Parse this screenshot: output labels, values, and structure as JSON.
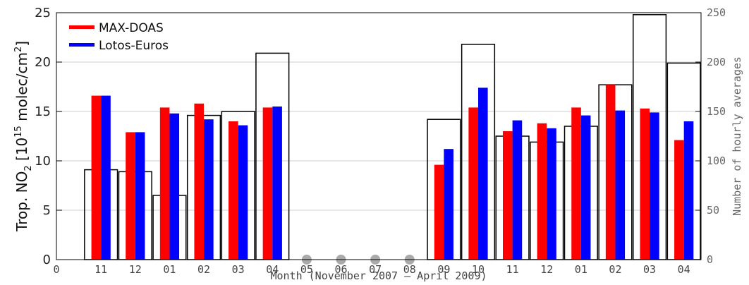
{
  "chart_data": {
    "type": "bar",
    "xlabel": "Month (November 2007 – April 2009)",
    "ylabel_left_main": "Trop. NO",
    "ylabel_left_sub": "2",
    "ylabel_left_rest_a": " [10",
    "ylabel_left_sup": "15",
    "ylabel_left_rest_b": " molec/cm",
    "ylabel_left_sup2": "2",
    "ylabel_left_end": "]",
    "ylabel_right": "Number of hourly averages",
    "ylim_left": [
      0,
      25
    ],
    "yticks_left": [
      "0",
      "5",
      "10",
      "15",
      "20",
      "25"
    ],
    "ylim_right": [
      0,
      250
    ],
    "yticks_right": [
      "0",
      "50",
      "100",
      "150",
      "200",
      "250"
    ],
    "x_first_tick": "0",
    "categories": [
      "11",
      "12",
      "01",
      "02",
      "03",
      "04",
      "05",
      "06",
      "07",
      "08",
      "09",
      "10",
      "11",
      "12",
      "01",
      "02",
      "03",
      "04"
    ],
    "grid": "horizontal",
    "legend_position": "top-left",
    "series": [
      {
        "name": "MAX-DOAS",
        "color": "#ff0000",
        "values": [
          16.6,
          12.9,
          15.4,
          15.8,
          14.0,
          15.4,
          null,
          null,
          null,
          null,
          9.6,
          15.4,
          13.0,
          13.8,
          15.4,
          17.7,
          15.3,
          12.1
        ]
      },
      {
        "name": "Lotos-Euros",
        "color": "#0000ff",
        "values": [
          16.6,
          12.9,
          14.8,
          14.2,
          13.6,
          15.5,
          null,
          null,
          null,
          null,
          11.2,
          17.4,
          14.1,
          13.3,
          14.6,
          15.1,
          14.9,
          14.0
        ]
      }
    ],
    "hourly_averages": [
      91,
      89,
      65,
      146,
      150,
      209,
      0,
      0,
      0,
      0,
      142,
      218,
      125,
      119,
      135,
      177,
      248,
      199
    ],
    "missing_markers": [
      "05",
      "06",
      "07",
      "08"
    ],
    "missing_marker_color": "#aaaaaa"
  }
}
